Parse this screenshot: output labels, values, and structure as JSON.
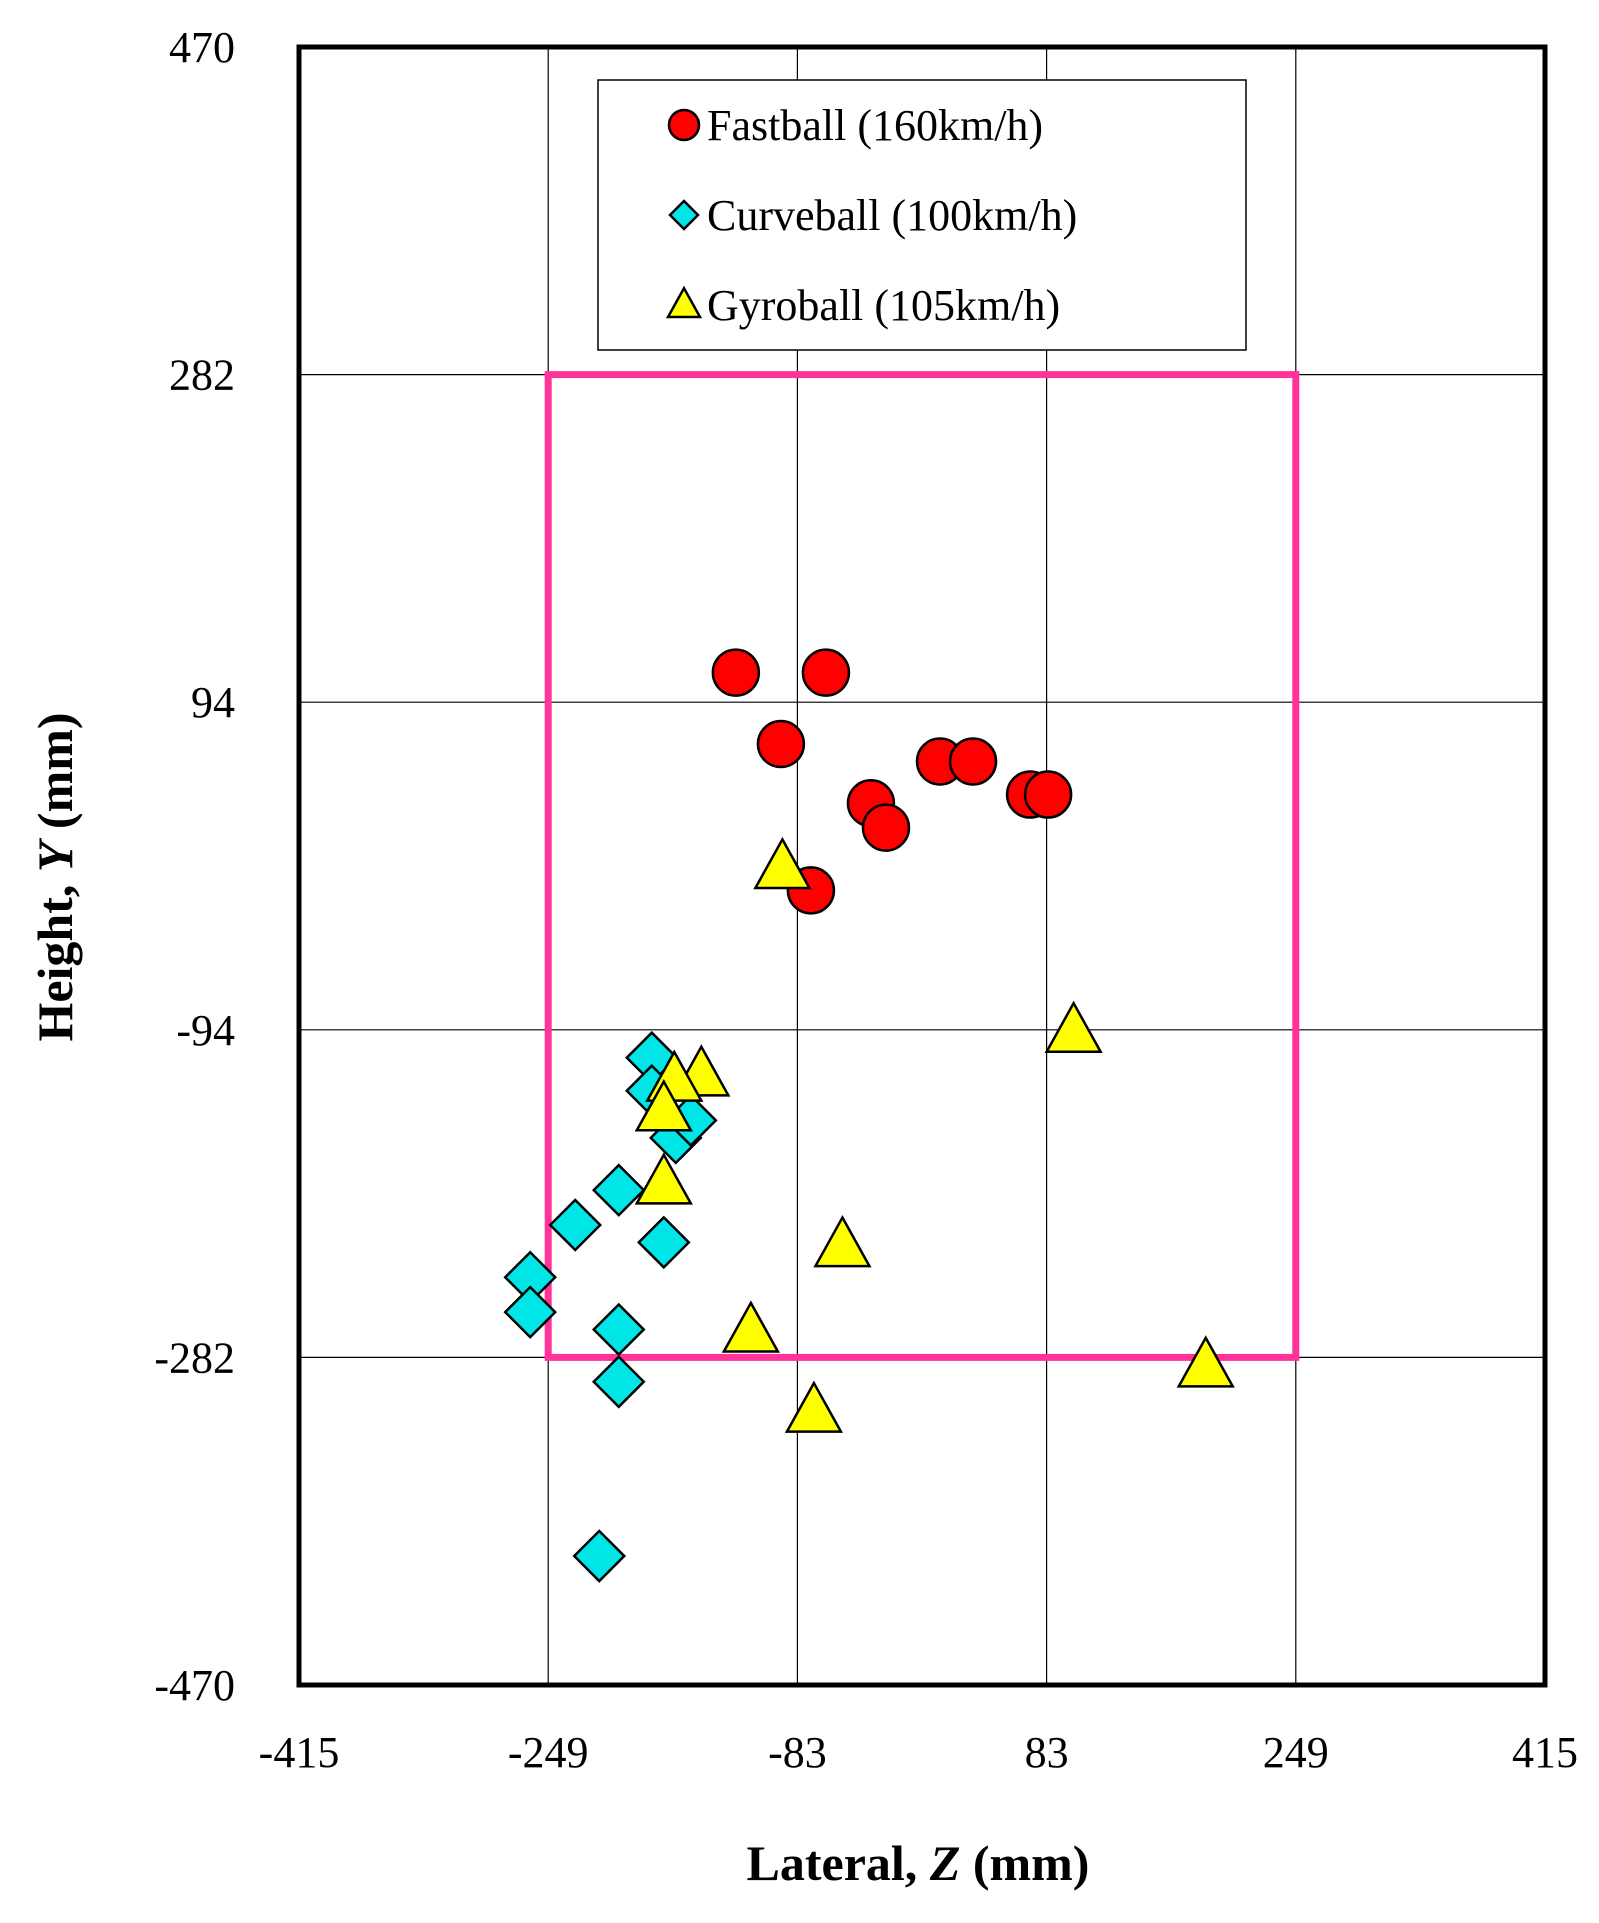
{
  "chart_data": {
    "type": "scatter",
    "title": "",
    "xlabel": {
      "prefix": "Lateral,",
      "var": "Z",
      "suffix": "(mm)"
    },
    "ylabel": {
      "prefix": "Height,",
      "var": "Y",
      "suffix": "(mm)"
    },
    "xlim": [
      -415,
      415
    ],
    "ylim": [
      -470,
      470
    ],
    "xticks": [
      -415,
      -249,
      -83,
      83,
      249,
      415
    ],
    "yticks": [
      470,
      282,
      94,
      -94,
      -282,
      -470
    ],
    "grid": true,
    "legend_position": "top-center",
    "strike_zone": {
      "x": [
        -249,
        249
      ],
      "y": [
        -282,
        282
      ],
      "color": "#ff3399"
    },
    "series": [
      {
        "name": "Fastball (160km/h)",
        "marker": "circle",
        "color": "#ff0000",
        "points": [
          [
            -124,
            111
          ],
          [
            -64,
            111
          ],
          [
            -94,
            70
          ],
          [
            12,
            60
          ],
          [
            34,
            60
          ],
          [
            -34,
            36
          ],
          [
            -24,
            22
          ],
          [
            72,
            41
          ],
          [
            84,
            41
          ],
          [
            -74,
            -14
          ]
        ]
      },
      {
        "name": "Curveball (100km/h)",
        "marker": "diamond",
        "color": "#00e6e6",
        "points": [
          [
            -180,
            -110
          ],
          [
            -180,
            -129
          ],
          [
            -202,
            -186
          ],
          [
            -172,
            -216
          ],
          [
            -231,
            -206
          ],
          [
            -261,
            -236
          ],
          [
            -261,
            -256
          ],
          [
            -202,
            -266
          ],
          [
            -202,
            -296
          ],
          [
            -215,
            -396
          ],
          [
            -164,
            -156
          ],
          [
            -154,
            -146
          ]
        ]
      },
      {
        "name": "Gyroball (105km/h)",
        "marker": "triangle",
        "color": "#ffff00",
        "points": [
          [
            -93,
            -1
          ],
          [
            101,
            -95
          ],
          [
            -147,
            -120
          ],
          [
            -165,
            -123
          ],
          [
            -172,
            -140
          ],
          [
            -172,
            -182
          ],
          [
            -53,
            -218
          ],
          [
            -114,
            -267
          ],
          [
            -72,
            -313
          ],
          [
            189,
            -287
          ]
        ]
      }
    ]
  }
}
